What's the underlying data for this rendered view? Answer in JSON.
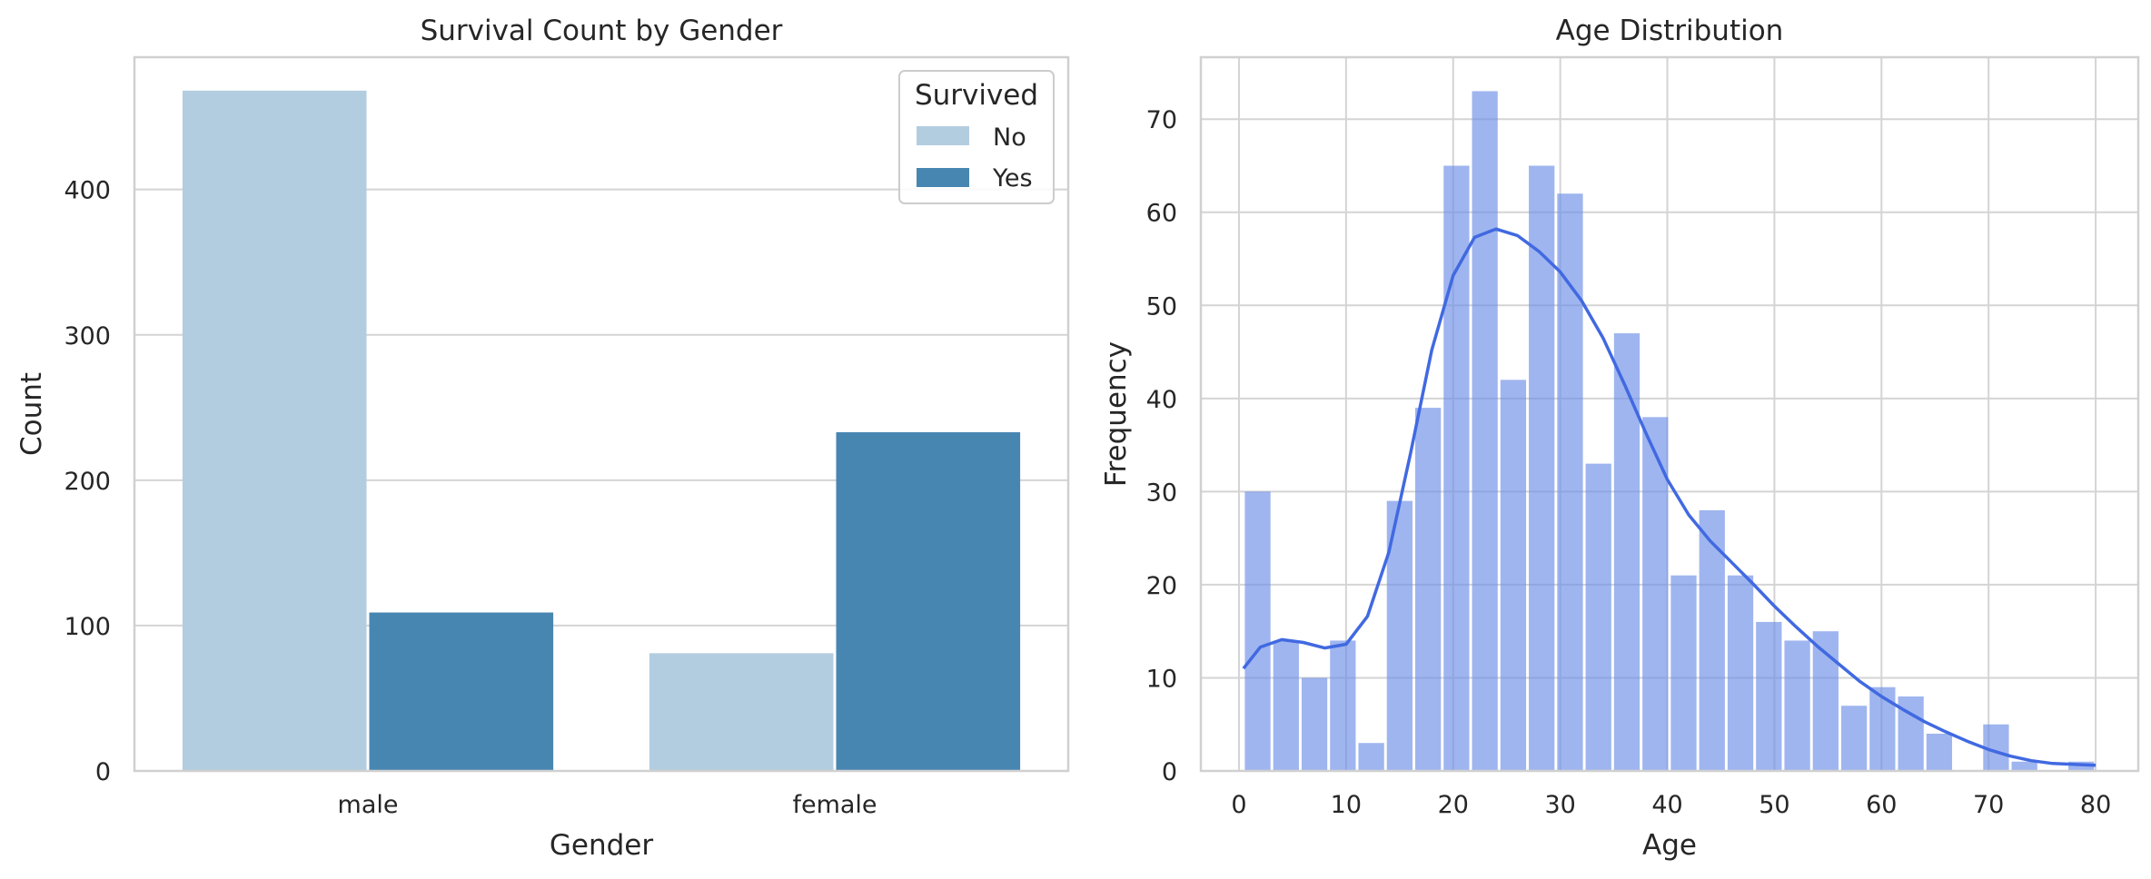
{
  "chart_data": [
    {
      "type": "bar",
      "title": "Survival Count by Gender",
      "xlabel": "Gender",
      "ylabel": "Count",
      "categories": [
        "male",
        "female"
      ],
      "series": [
        {
          "name": "No",
          "values": [
            468,
            81
          ],
          "color": "#b3cde0"
        },
        {
          "name": "Yes",
          "values": [
            109,
            233
          ],
          "color": "#4886b2"
        }
      ],
      "ylim": [
        0,
        491
      ],
      "yticks": [
        0,
        100,
        200,
        300,
        400
      ],
      "legend": {
        "title": "Survived",
        "placement": "top-right"
      },
      "grid": "horizontal"
    },
    {
      "type": "histogram",
      "title": "Age Distribution",
      "xlabel": "Age",
      "ylabel": "Frequency",
      "bin_start": 0.42,
      "bin_width": 2.652,
      "counts": [
        30,
        14,
        10,
        14,
        3,
        29,
        39,
        65,
        73,
        42,
        65,
        62,
        33,
        47,
        38,
        21,
        28,
        21,
        16,
        14,
        15,
        7,
        9,
        8,
        4,
        0,
        5,
        1,
        0,
        1
      ],
      "bar_color": "#6b8ee6",
      "kde": {
        "color": "#4169e1",
        "x": [
          0.42,
          2,
          4,
          6,
          8,
          10,
          12,
          14,
          16,
          18,
          20,
          22,
          24,
          26,
          28,
          30,
          32,
          34,
          36,
          38,
          40,
          42,
          44,
          46,
          48,
          50,
          52,
          54,
          56,
          58,
          60,
          62,
          64,
          66,
          68,
          70,
          72,
          74,
          76,
          78,
          80
        ],
        "y": [
          11,
          13.3,
          14.1,
          13.8,
          13.2,
          13.6,
          16.6,
          23.5,
          34,
          45.2,
          53.2,
          57.3,
          58.2,
          57.5,
          55.8,
          53.6,
          50.5,
          46.5,
          41.5,
          36.3,
          31.3,
          27.5,
          24.7,
          22.4,
          20.1,
          17.7,
          15.5,
          13.4,
          11.5,
          9.6,
          8,
          6.6,
          5.3,
          4.2,
          3.2,
          2.3,
          1.6,
          1.1,
          0.8,
          0.7,
          0.6
        ]
      },
      "xlim": [
        -3.56,
        83.98
      ],
      "ylim": [
        0,
        76.65
      ],
      "xticks": [
        0,
        10,
        20,
        30,
        40,
        50,
        60,
        70,
        80
      ],
      "yticks": [
        0,
        10,
        20,
        30,
        40,
        50,
        60,
        70
      ],
      "grid": "both"
    }
  ]
}
